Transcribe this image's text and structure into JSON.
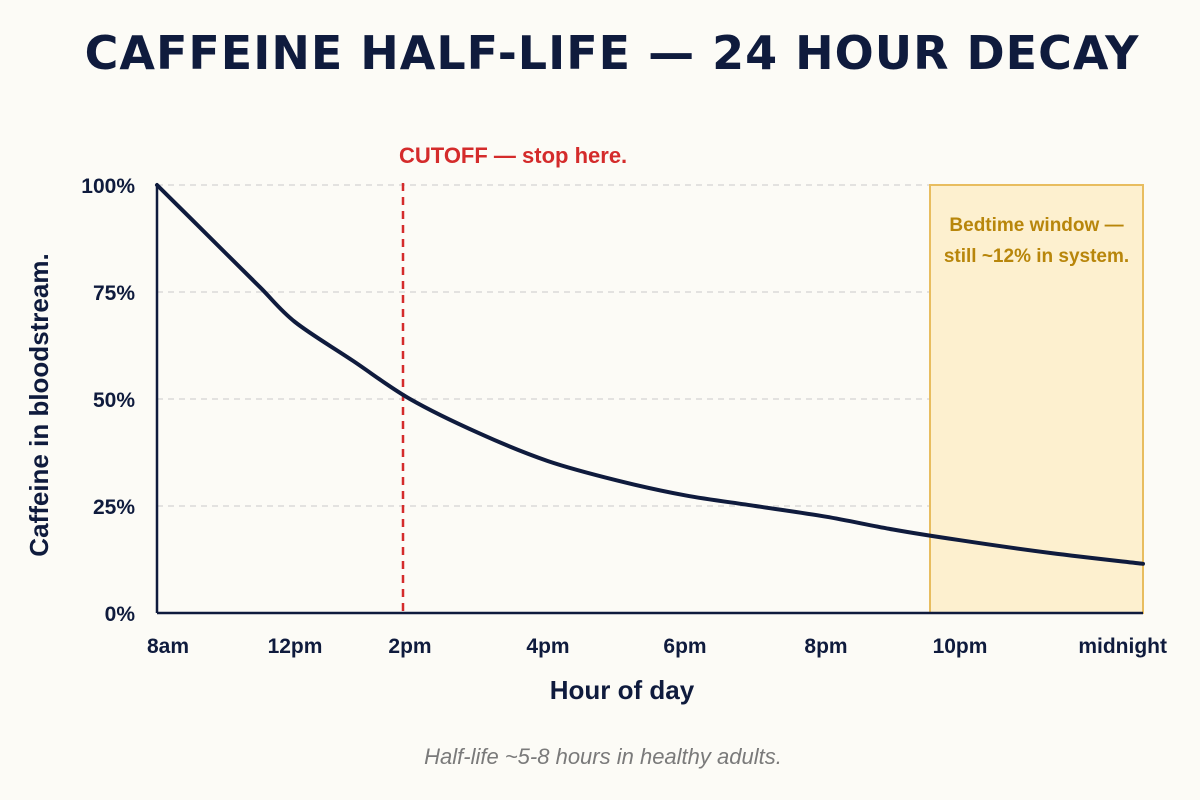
{
  "colors": {
    "background": "#fcfbf6",
    "ink": "#0f1b3d",
    "curve": "#0f1b3d",
    "cutoff": "#d42b2b",
    "bedtime_fill": "#fdf0cf",
    "bedtime_stroke": "#e8bd5f",
    "bedtime_text": "#b8860b",
    "grid": "#d4d4d4",
    "footnote": "#7a7a7a"
  },
  "chart_data": {
    "type": "line",
    "title": "CAFFEINE HALF-LIFE — 24 HOUR DECAY",
    "xlabel": "Hour of day",
    "ylabel": "Caffeine in bloodstream.",
    "x_ticks": [
      {
        "hour": 8,
        "label": "8am"
      },
      {
        "hour": 12,
        "label": "12pm"
      },
      {
        "hour": 14,
        "label": "2pm"
      },
      {
        "hour": 16,
        "label": "4pm"
      },
      {
        "hour": 18,
        "label": "6pm"
      },
      {
        "hour": 20,
        "label": "8pm"
      },
      {
        "hour": 22,
        "label": "10pm"
      },
      {
        "hour": 24,
        "label": "midnight"
      }
    ],
    "y_ticks": [
      {
        "value": 0,
        "label": "0%"
      },
      {
        "value": 25,
        "label": "25%"
      },
      {
        "value": 50,
        "label": "50%"
      },
      {
        "value": 75,
        "label": "75%"
      },
      {
        "value": 100,
        "label": "100%"
      }
    ],
    "ylim": [
      0,
      100
    ],
    "grid": true,
    "series": [
      {
        "points": [
          {
            "x": 8,
            "y": 100
          },
          {
            "x": 9,
            "y": 92
          },
          {
            "x": 10,
            "y": 84
          },
          {
            "x": 11,
            "y": 76
          },
          {
            "x": 12,
            "y": 68
          },
          {
            "x": 13,
            "y": 59
          },
          {
            "x": 14,
            "y": 50
          },
          {
            "x": 15,
            "y": 42
          },
          {
            "x": 16,
            "y": 35.5
          },
          {
            "x": 17,
            "y": 31
          },
          {
            "x": 18,
            "y": 27.5
          },
          {
            "x": 19,
            "y": 25
          },
          {
            "x": 20,
            "y": 22.5
          },
          {
            "x": 21,
            "y": 19.5
          },
          {
            "x": 22,
            "y": 17
          },
          {
            "x": 23,
            "y": 14
          },
          {
            "x": 24,
            "y": 11.5
          }
        ]
      }
    ],
    "annotations": {
      "cutoff": {
        "x": 14,
        "label": "CUTOFF — stop here."
      },
      "bedtime_window": {
        "x_start": 22,
        "x_end": 24,
        "lines": [
          "Bedtime window —",
          "still ~12% in system."
        ]
      }
    },
    "footnote": "Half-life ~5-8 hours in healthy adults."
  }
}
